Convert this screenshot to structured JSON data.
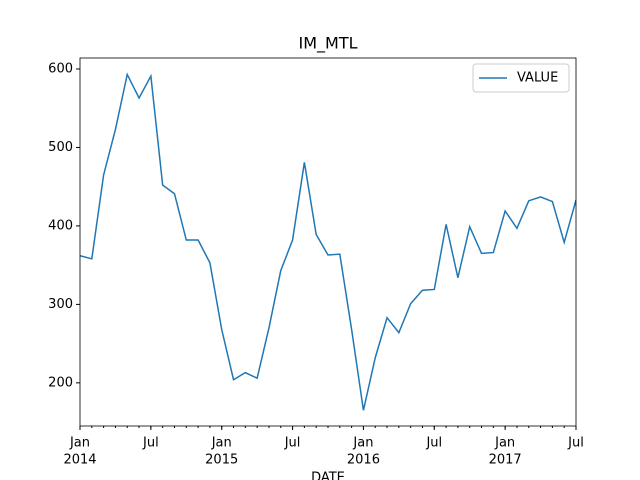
{
  "chart_data": {
    "type": "line",
    "title": "IM_MTL",
    "xlabel": "DATE",
    "x": [
      "2014-01",
      "2014-02",
      "2014-03",
      "2014-04",
      "2014-05",
      "2014-06",
      "2014-07",
      "2014-08",
      "2014-09",
      "2014-10",
      "2014-11",
      "2014-12",
      "2015-01",
      "2015-02",
      "2015-03",
      "2015-04",
      "2015-05",
      "2015-06",
      "2015-07",
      "2015-08",
      "2015-09",
      "2015-10",
      "2015-11",
      "2015-12",
      "2016-01",
      "2016-02",
      "2016-03",
      "2016-04",
      "2016-05",
      "2016-06",
      "2016-07",
      "2016-08",
      "2016-09",
      "2016-10",
      "2016-11",
      "2016-12",
      "2017-01",
      "2017-02",
      "2017-03",
      "2017-04",
      "2017-05",
      "2017-06",
      "2017-07"
    ],
    "series": [
      {
        "name": "VALUE",
        "color": "#1f77b4",
        "values": [
          362,
          358,
          465,
          523,
          593,
          563,
          591,
          452,
          441,
          382,
          382,
          353,
          268,
          204,
          213,
          206,
          270,
          343,
          382,
          481,
          389,
          363,
          364,
          268,
          165,
          232,
          283,
          264,
          301,
          318,
          319,
          402,
          334,
          399,
          365,
          366,
          419,
          397,
          432,
          437,
          431,
          379,
          433
        ]
      }
    ],
    "xlim": [
      "2014-01",
      "2017-07"
    ],
    "xticks": [
      {
        "value": "2014-01",
        "label": "Jan",
        "year": "2014"
      },
      {
        "value": "2014-07",
        "label": "Jul"
      },
      {
        "value": "2015-01",
        "label": "Jan",
        "year": "2015"
      },
      {
        "value": "2015-07",
        "label": "Jul"
      },
      {
        "value": "2016-01",
        "label": "Jan",
        "year": "2016"
      },
      {
        "value": "2016-07",
        "label": "Jul"
      },
      {
        "value": "2017-01",
        "label": "Jan",
        "year": "2017"
      },
      {
        "value": "2017-07",
        "label": "Jul"
      }
    ],
    "ylim": [
      145,
      614
    ],
    "yticks": [
      200,
      300,
      400,
      500,
      600
    ],
    "legend": "upper right",
    "grid": false
  }
}
